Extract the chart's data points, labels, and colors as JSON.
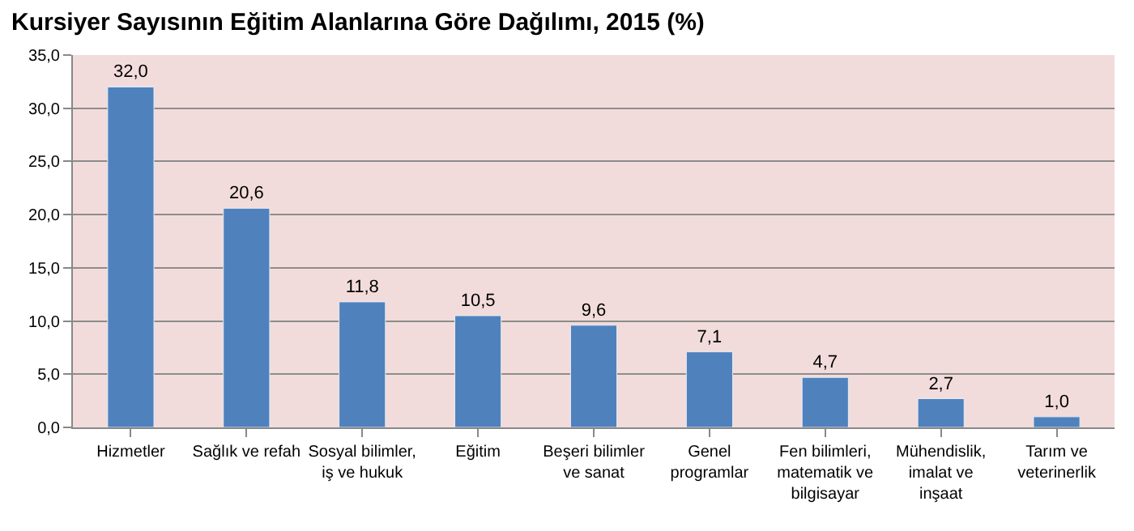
{
  "chart_data": {
    "type": "bar",
    "title": "Kursiyer Sayısının Eğitim Alanlarına Göre Dağılımı, 2015 (%)",
    "categories": [
      "Hizmetler",
      "Sağlık ve refah",
      "Sosyal bilimler,\niş ve hukuk",
      "Eğitim",
      "Beşeri bilimler\nve sanat",
      "Genel\nprogramlar",
      "Fen bilimleri,\nmatematik ve\nbilgisayar",
      "Mühendislik,\nimalat ve\ninşaat",
      "Tarım ve\nveterinerlik"
    ],
    "values": [
      32.0,
      20.6,
      11.8,
      10.5,
      9.6,
      7.1,
      4.7,
      2.7,
      1.0
    ],
    "value_labels": [
      "32,0",
      "20,6",
      "11,8",
      "10,5",
      "9,6",
      "7,1",
      "4,7",
      "2,7",
      "1,0"
    ],
    "color": "#4f81bd",
    "ylim": [
      0,
      35
    ],
    "yticks": [
      {
        "value": 0,
        "label": "0,0"
      },
      {
        "value": 5,
        "label": "5,0"
      },
      {
        "value": 10,
        "label": "10,0"
      },
      {
        "value": 15,
        "label": "15,0"
      },
      {
        "value": 20,
        "label": "20,0"
      },
      {
        "value": 25,
        "label": "25,0"
      },
      {
        "value": 30,
        "label": "30,0"
      },
      {
        "value": 35,
        "label": "35,0"
      }
    ],
    "grid": "y",
    "legend": false
  }
}
